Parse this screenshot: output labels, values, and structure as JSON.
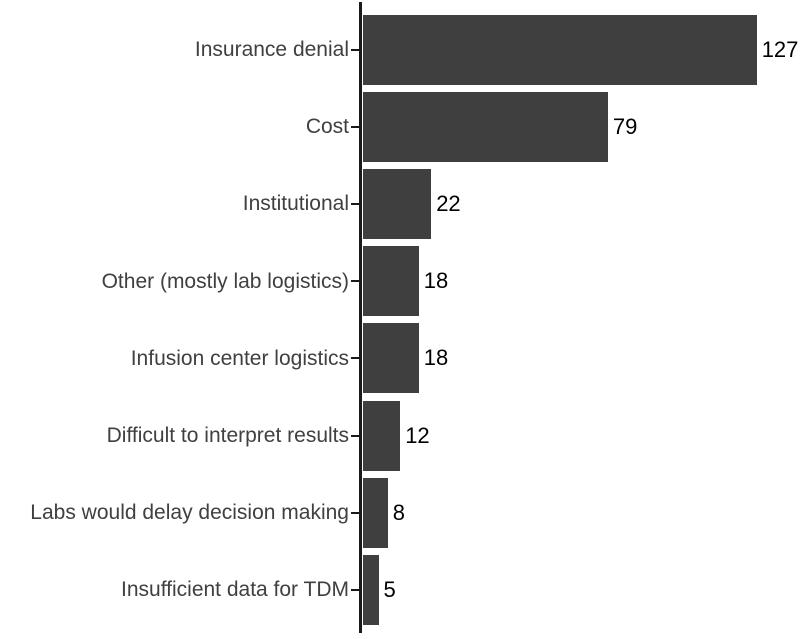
{
  "chart_data": {
    "type": "bar",
    "orientation": "horizontal",
    "title": "",
    "xlabel": "",
    "ylabel": "",
    "categories": [
      "Insurance denial",
      "Cost",
      "Institutional",
      "Other (mostly lab logistics)",
      "Infusion center logistics",
      "Difficult to interpret results",
      "Labs would delay decision making",
      "Insufficient data for TDM"
    ],
    "values": [
      127,
      79,
      22,
      18,
      18,
      12,
      8,
      5
    ],
    "value_labels_shown": true,
    "xlim": [
      0,
      142
    ],
    "grid": false,
    "legend": false,
    "bar_color": "#3f3f3f",
    "axis_color": "#1a1a1a",
    "category_label_color": "#404040",
    "value_label_color": "#000000",
    "background_color": "#ffffff"
  }
}
